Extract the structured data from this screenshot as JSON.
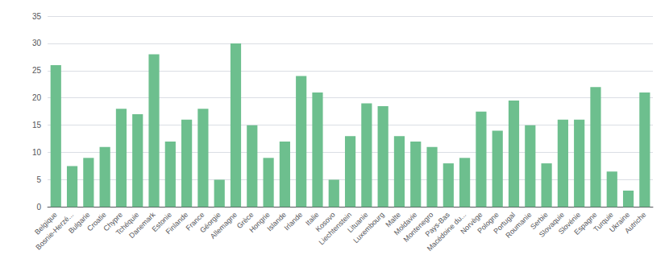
{
  "chart_data": {
    "type": "bar",
    "categories": [
      "Belgique",
      "Bosnie-Herzé...",
      "Bulgarie",
      "Croatie",
      "Chypre",
      "Tchéquie",
      "Danemark",
      "Estonie",
      "Finlande",
      "France",
      "Géorgie",
      "Allemagne",
      "Grèce",
      "Hongrie",
      "Islande",
      "Irlande",
      "Italie",
      "Kosovo",
      "Liechtenstein",
      "Lituanie",
      "Luxembourg",
      "Malte",
      "Moldavie",
      "Montenegro",
      "Pays-Bas",
      "Macédoine du...",
      "Norvège",
      "Pologne",
      "Portugal",
      "Roumanie",
      "Serbie",
      "Slovaquie",
      "Slovénie",
      "Espagne",
      "Turquie",
      "Ukraine",
      "Autriche"
    ],
    "values": [
      26,
      7.5,
      9,
      11,
      18,
      17,
      28,
      12,
      16,
      18,
      5,
      30,
      15,
      9,
      12,
      24,
      21,
      5,
      13,
      19,
      18.5,
      13,
      12,
      11,
      8,
      9,
      17.5,
      14,
      19.5,
      15,
      8,
      16,
      16,
      22,
      6.5,
      3,
      21
    ],
    "color": "#6dbf8e",
    "ylim": [
      0,
      35
    ],
    "yticks": [
      0,
      5,
      10,
      15,
      20,
      25,
      30,
      35
    ],
    "grid": true
  }
}
